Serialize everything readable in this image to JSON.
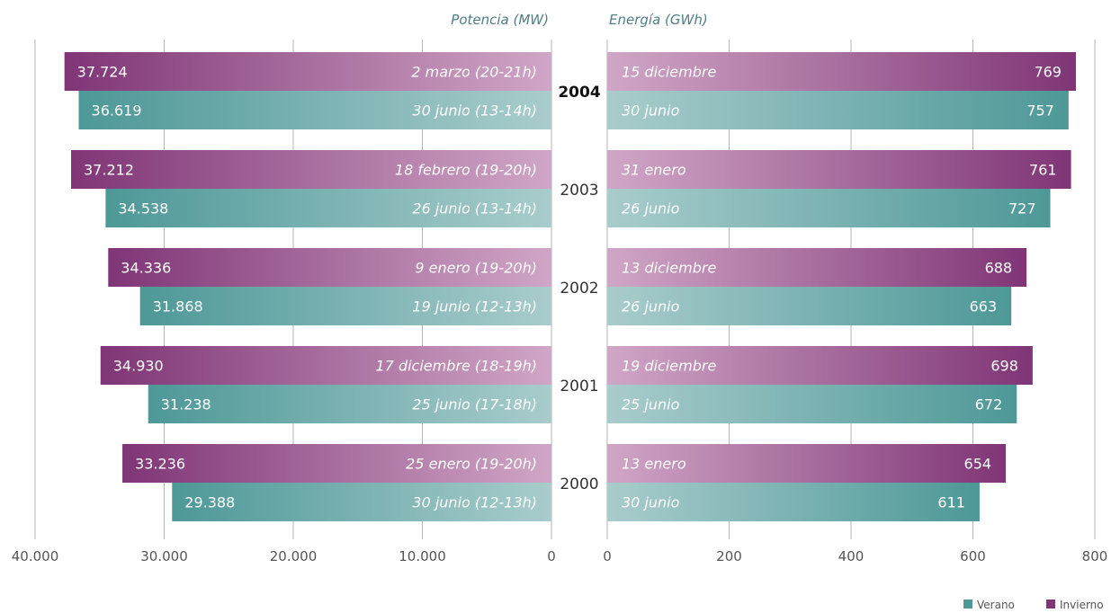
{
  "colors": {
    "verano": "#4e9898",
    "invierno": "#7f3576",
    "verano_light": "#a9cccc",
    "invierno_light": "#d0a6c6",
    "grid": "#b5b5b5"
  },
  "chart_data": {
    "type": "bar",
    "orientation": "horizontal",
    "layout": "butterfly",
    "left_panel": {
      "title": "Potencia (MW)",
      "xlim": [
        0,
        40000
      ],
      "ticks": [
        "40.000",
        "30.000",
        "20.000",
        "10.000",
        "0"
      ],
      "tick_values": [
        40000,
        30000,
        20000,
        10000,
        0
      ]
    },
    "right_panel": {
      "title": "Energía (GWh)",
      "xlim": [
        0,
        800
      ],
      "ticks": [
        "0",
        "200",
        "400",
        "600",
        "800"
      ],
      "tick_values": [
        0,
        200,
        400,
        600,
        800
      ]
    },
    "categories": [
      "2004",
      "2003",
      "2002",
      "2001",
      "2000"
    ],
    "highlight_category": "2004",
    "series": [
      {
        "name": "Invierno",
        "color": "#7f3576",
        "potencia_values": [
          37724,
          37212,
          34336,
          34930,
          33236
        ],
        "potencia_labels": [
          "37.724",
          "37.212",
          "34.336",
          "34.930",
          "33.236"
        ],
        "potencia_dates": [
          "2 marzo (20-21h)",
          "18 febrero (19-20h)",
          "9 enero (19-20h)",
          "17 diciembre (18-19h)",
          "25 enero (19-20h)"
        ],
        "energia_values": [
          769,
          761,
          688,
          698,
          654
        ],
        "energia_labels": [
          "769",
          "761",
          "688",
          "698",
          "654"
        ],
        "energia_dates": [
          "15 diciembre",
          "31 enero",
          "13 diciembre",
          "19 diciembre",
          "13 enero"
        ]
      },
      {
        "name": "Verano",
        "color": "#4e9898",
        "potencia_values": [
          36619,
          34538,
          31868,
          31238,
          29388
        ],
        "potencia_labels": [
          "36.619",
          "34.538",
          "31.868",
          "31.238",
          "29.388"
        ],
        "potencia_dates": [
          "30 junio (13-14h)",
          "26 junio (13-14h)",
          "19 junio (12-13h)",
          "25 junio (17-18h)",
          "30 junio (12-13h)"
        ],
        "energia_values": [
          757,
          727,
          663,
          672,
          611
        ],
        "energia_labels": [
          "757",
          "727",
          "663",
          "672",
          "611"
        ],
        "energia_dates": [
          "30 junio",
          "26 junio",
          "26 junio",
          "25 junio",
          "30 junio"
        ]
      }
    ],
    "legend": [
      {
        "name": "Verano",
        "color": "#4e9898"
      },
      {
        "name": "Invierno",
        "color": "#7f3576"
      }
    ],
    "legend_position": "bottom-right",
    "grid": true
  }
}
